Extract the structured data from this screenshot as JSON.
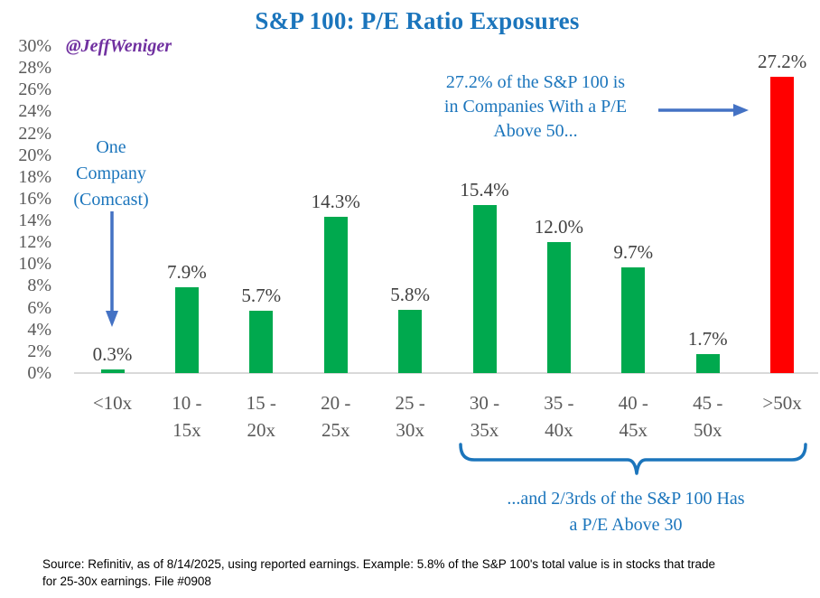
{
  "title": "S&P 100: P/E Ratio Exposures",
  "watermark": "@JeffWeniger",
  "colors": {
    "title_blue": "#1b75bc",
    "annotation_blue": "#1b75bc",
    "arrow_blue": "#4472c4",
    "bar_green": "#00a94e",
    "bar_red": "#ff0000",
    "axis_label_gray": "#595959",
    "data_label_gray": "#404040",
    "axis_line_gray": "#d9d9d9",
    "watermark_purple": "#7030a0"
  },
  "chart_data": {
    "type": "bar",
    "title": "S&P 100: P/E Ratio Exposures",
    "categories": [
      "<10x",
      "10 - 15x",
      "15 - 20x",
      "20 - 25x",
      "25 - 30x",
      "30 - 35x",
      "35 - 40x",
      "40 - 45x",
      "45 - 50x",
      ">50x"
    ],
    "category_lines": [
      [
        "<10x"
      ],
      [
        "10 -",
        "15x"
      ],
      [
        "15 -",
        "20x"
      ],
      [
        "20 -",
        "25x"
      ],
      [
        "25 -",
        "30x"
      ],
      [
        "30 -",
        "35x"
      ],
      [
        "35 -",
        "40x"
      ],
      [
        "40 -",
        "45x"
      ],
      [
        "45 -",
        "50x"
      ],
      [
        ">50x"
      ]
    ],
    "values": [
      0.3,
      7.9,
      5.7,
      14.3,
      5.8,
      15.4,
      12.0,
      9.7,
      1.7,
      27.2
    ],
    "value_labels": [
      "0.3%",
      "7.9%",
      "5.7%",
      "14.3%",
      "5.8%",
      "15.4%",
      "12.0%",
      "9.7%",
      "1.7%",
      "27.2%"
    ],
    "bar_colors": [
      "#00a94e",
      "#00a94e",
      "#00a94e",
      "#00a94e",
      "#00a94e",
      "#00a94e",
      "#00a94e",
      "#00a94e",
      "#00a94e",
      "#ff0000"
    ],
    "xlabel": "",
    "ylabel": "",
    "ylim": [
      0,
      30
    ],
    "ytick_step": 2,
    "ytick_labels": [
      "0%",
      "2%",
      "4%",
      "6%",
      "8%",
      "10%",
      "12%",
      "14%",
      "16%",
      "18%",
      "20%",
      "22%",
      "24%",
      "26%",
      "28%",
      "30%"
    ],
    "grid": false,
    "legend": false
  },
  "annotations": {
    "one_company": {
      "lines": [
        "One",
        "Company",
        "(Comcast)"
      ]
    },
    "above50": {
      "lines": [
        "27.2% of the S&P 100 is",
        "in Companies With a P/E",
        "Above 50..."
      ]
    },
    "above30": {
      "lines": [
        "...and 2/3rds of the S&P 100 Has",
        "a P/E Above 30"
      ]
    }
  },
  "source": {
    "lines": [
      "Source: Refinitiv, as of 8/14/2025, using reported earnings. Example: 5.8% of the S&P 100's total value is in stocks that trade",
      "for 25-30x earnings. File #0908"
    ]
  }
}
